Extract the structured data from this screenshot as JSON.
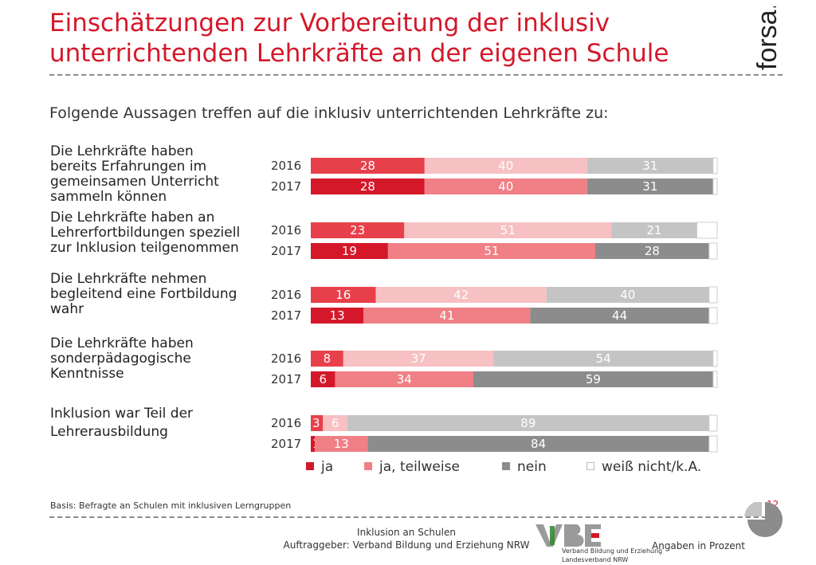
{
  "header": {
    "title_line1": "Einschätzungen zur Vorbereitung der inklusiv",
    "title_line2": "unterrichtenden Lehrkräfte an der eigenen Schule",
    "logo_text": "forsa."
  },
  "subtitle": "Folgende Aussagen treffen auf die inklusiv unterrichtenden Lehrkräfte  zu:",
  "questions": [
    {
      "lines": [
        "Die Lehrkräfte haben",
        "bereits Erfahrungen im",
        "gemeinsamen Unterricht",
        "sammeln können"
      ]
    },
    {
      "lines": [
        "Die Lehrkräfte haben an",
        "Lehrerfortbildungen speziell",
        "zur Inklusion teilgenommen"
      ]
    },
    {
      "lines": [
        "Die Lehrkräfte nehmen",
        "begleitend eine Fortbildung",
        "wahr"
      ]
    },
    {
      "lines": [
        "Die Lehrkräfte haben",
        "sonderpädagogische",
        "Kenntnisse"
      ]
    },
    {
      "lines": [
        "Inklusion war Teil der",
        "Lehrerausbildung"
      ]
    }
  ],
  "chart_data": {
    "type": "bar",
    "orientation": "horizontal",
    "stacked": true,
    "unit": "Angaben in Prozent",
    "series_names": [
      "ja",
      "ja, teilweise",
      "nein",
      "weiß nicht/k.A."
    ],
    "colors": {
      "2016": [
        "#e8404a",
        "#f7c0c3",
        "#c4c4c4",
        "#ffffff"
      ],
      "2017": [
        "#d4182a",
        "#f08086",
        "#8c8c8c",
        "#ffffff"
      ]
    },
    "legend_colors": [
      "#d4182a",
      "#f08086",
      "#8c8c8c",
      "#ffffff"
    ],
    "groups": [
      {
        "bars": [
          {
            "year": "2016",
            "values": [
              28,
              40,
              31,
              1
            ]
          },
          {
            "year": "2017",
            "values": [
              28,
              40,
              31,
              1
            ]
          }
        ]
      },
      {
        "bars": [
          {
            "year": "2016",
            "values": [
              23,
              51,
              21,
              5
            ]
          },
          {
            "year": "2017",
            "values": [
              19,
              51,
              28,
              2
            ]
          }
        ]
      },
      {
        "bars": [
          {
            "year": "2016",
            "values": [
              16,
              42,
              40,
              2
            ]
          },
          {
            "year": "2017",
            "values": [
              13,
              41,
              44,
              2
            ]
          }
        ]
      },
      {
        "bars": [
          {
            "year": "2016",
            "values": [
              8,
              37,
              54,
              1
            ]
          },
          {
            "year": "2017",
            "values": [
              6,
              34,
              59,
              1
            ]
          }
        ]
      },
      {
        "bars": [
          {
            "year": "2016",
            "values": [
              3,
              6,
              89,
              2
            ]
          },
          {
            "year": "2017",
            "values": [
              1,
              13,
              84,
              2
            ]
          }
        ]
      }
    ],
    "xlim": [
      0,
      100
    ]
  },
  "footer": {
    "basis": "Basis: Befragte an Schulen mit inklusiven Lerngruppen",
    "page_number": "12",
    "topic": "Inklusion an Schulen",
    "client": "Auftraggeber: Verband Bildung und Erziehung NRW",
    "vbe_line1": "Verband Bildung und Erziehung",
    "vbe_line2": "Landesverband NRW",
    "units": "Angaben in Prozent"
  }
}
